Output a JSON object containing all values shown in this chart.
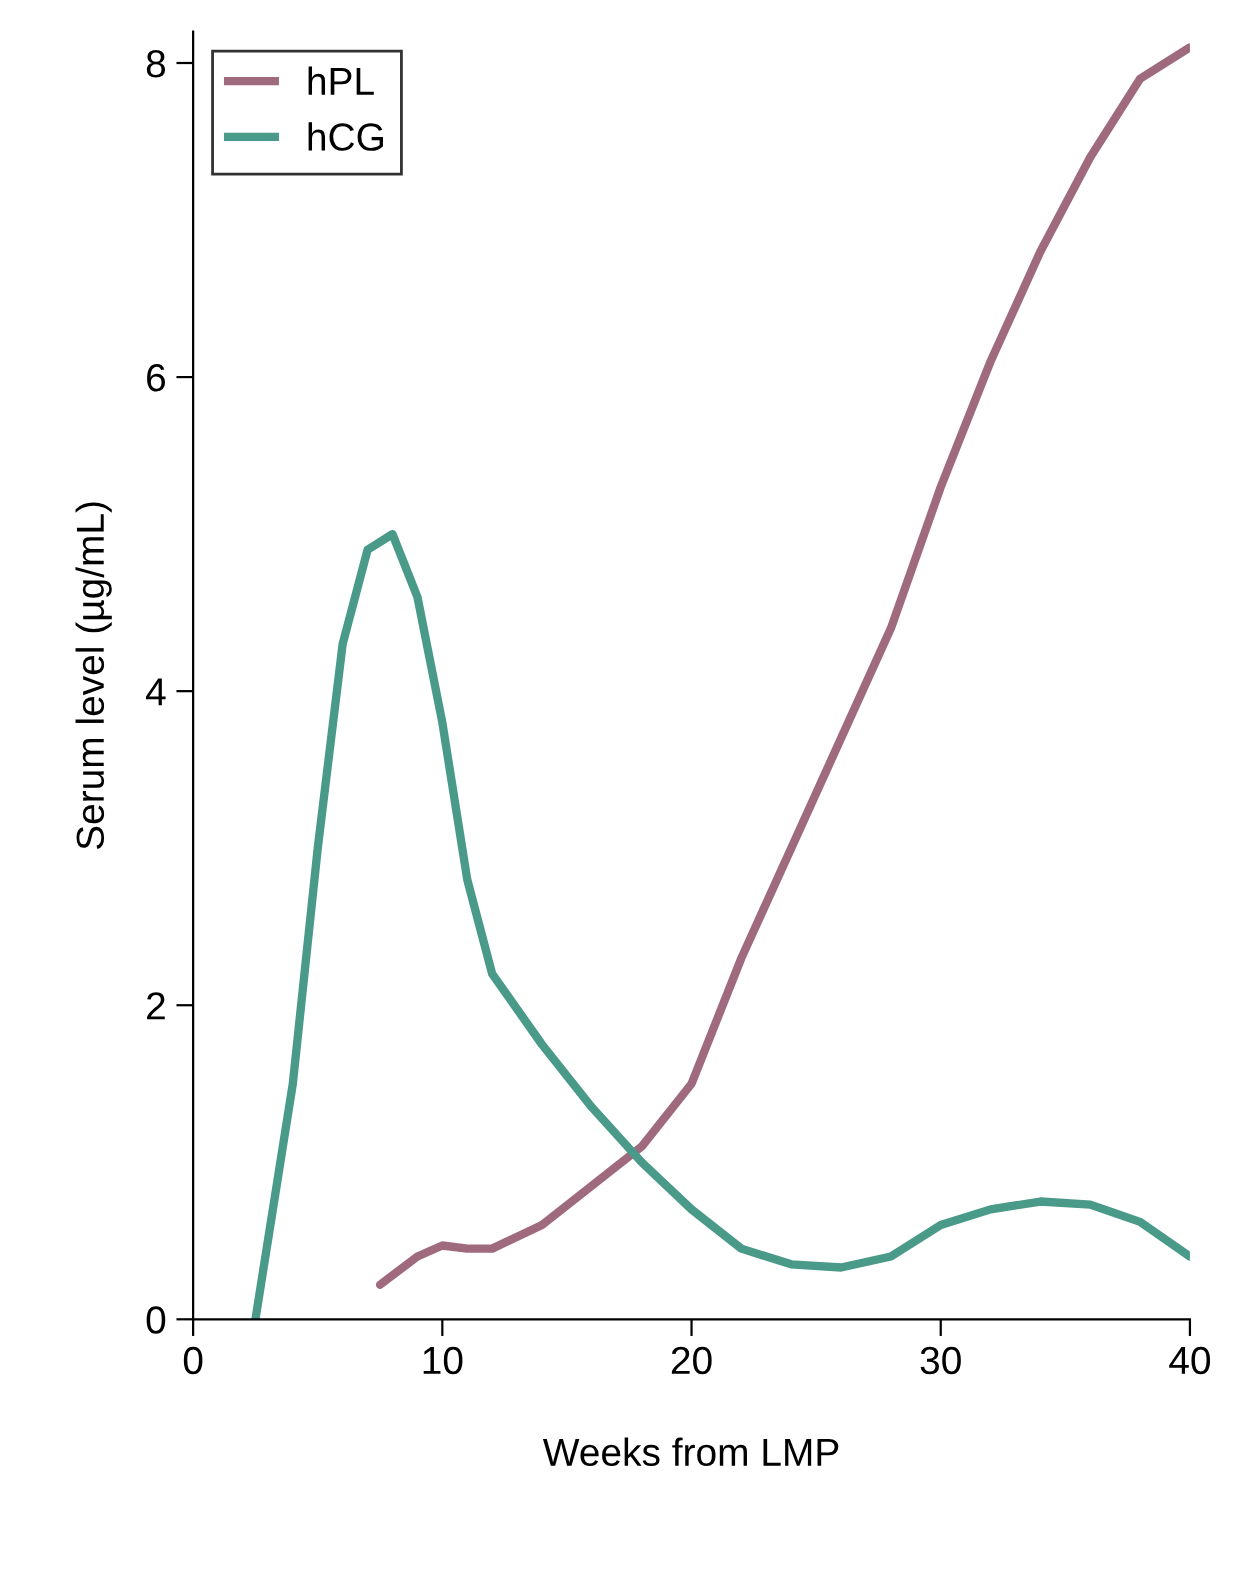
{
  "chart_data": {
    "type": "line",
    "xlabel": "Weeks from LMP",
    "ylabel": "Serum level (µg/mL)",
    "xlim": [
      0,
      40
    ],
    "xticks": [
      0,
      10,
      20,
      30,
      40
    ],
    "ylim": [
      0,
      8.2
    ],
    "yticks": [
      0,
      2,
      4,
      6,
      8
    ],
    "grid": false,
    "legend": "top left",
    "marker": "none",
    "line_style": "solid",
    "series": [
      {
        "name": "hPL",
        "color": "#a06a7e",
        "x": [
          7.5,
          9,
          10,
          11,
          12,
          14,
          16,
          18,
          20,
          22,
          24,
          26,
          28,
          30,
          32,
          34,
          36,
          38,
          40
        ],
        "values": [
          0.22,
          0.4,
          0.47,
          0.45,
          0.45,
          0.6,
          0.85,
          1.1,
          1.5,
          2.3,
          3.0,
          3.7,
          4.4,
          5.3,
          6.1,
          6.8,
          7.4,
          7.9,
          8.1
        ]
      },
      {
        "name": "hCG",
        "color": "#4a9a8a",
        "x": [
          2.5,
          4,
          5,
          6,
          7,
          8,
          9,
          10,
          11,
          12,
          14,
          16,
          18,
          20,
          22,
          24,
          26,
          28,
          30,
          32,
          34,
          36,
          38,
          40
        ],
        "values": [
          0,
          1.5,
          3.0,
          4.3,
          4.9,
          5.0,
          4.6,
          3.8,
          2.8,
          2.2,
          1.75,
          1.35,
          1.0,
          0.7,
          0.45,
          0.35,
          0.33,
          0.4,
          0.6,
          0.7,
          0.75,
          0.73,
          0.62,
          0.4
        ]
      }
    ]
  }
}
